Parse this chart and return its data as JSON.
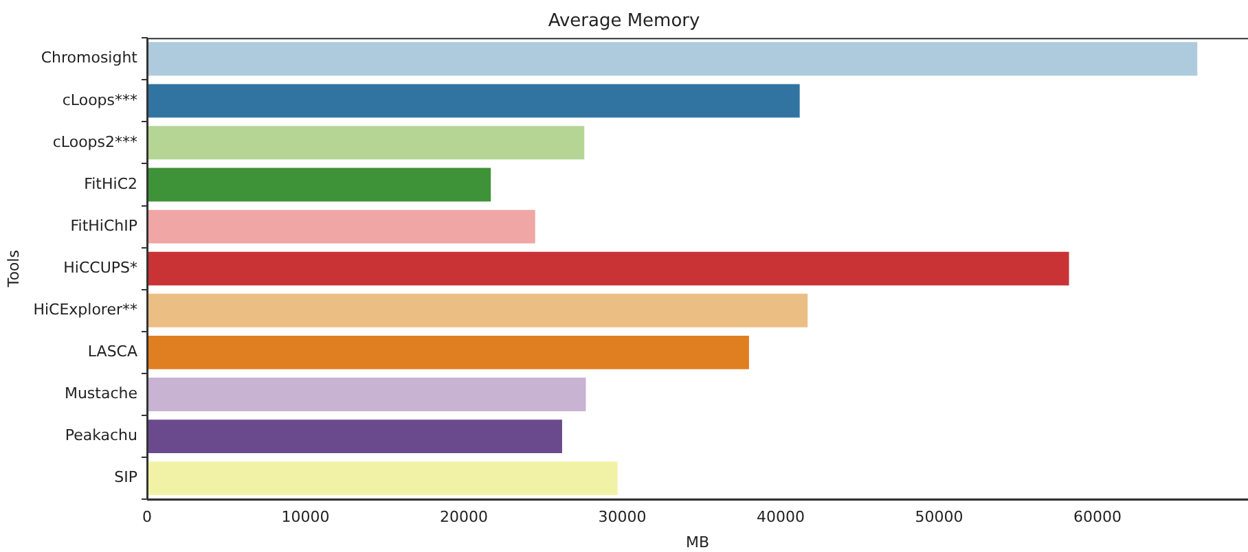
{
  "chart_data": {
    "type": "bar",
    "orientation": "horizontal",
    "title": "Average Memory",
    "xlabel": "MB",
    "ylabel": "Tools",
    "categories": [
      "Chromosight",
      "cLoops***",
      "cLoops2***",
      "FitHiC2",
      "FitHiChIP",
      "HiCCUPS*",
      "HiCExplorer**",
      "LASCA",
      "Mustache",
      "Peakachu",
      "SIP"
    ],
    "values": [
      66300,
      41200,
      27600,
      21700,
      24500,
      58200,
      41700,
      38000,
      27700,
      26200,
      29700
    ],
    "colors": [
      "#aecbdd",
      "#3274a1",
      "#b5d595",
      "#3e9237",
      "#f0a6a5",
      "#c93336",
      "#ebbe84",
      "#e07f21",
      "#c8b3d2",
      "#6a4a8c",
      "#f2f2a6"
    ],
    "xlim": [
      0,
      69500
    ],
    "xticks": [
      0,
      10000,
      20000,
      30000,
      40000,
      50000,
      60000
    ],
    "grid": false,
    "legend": false
  }
}
